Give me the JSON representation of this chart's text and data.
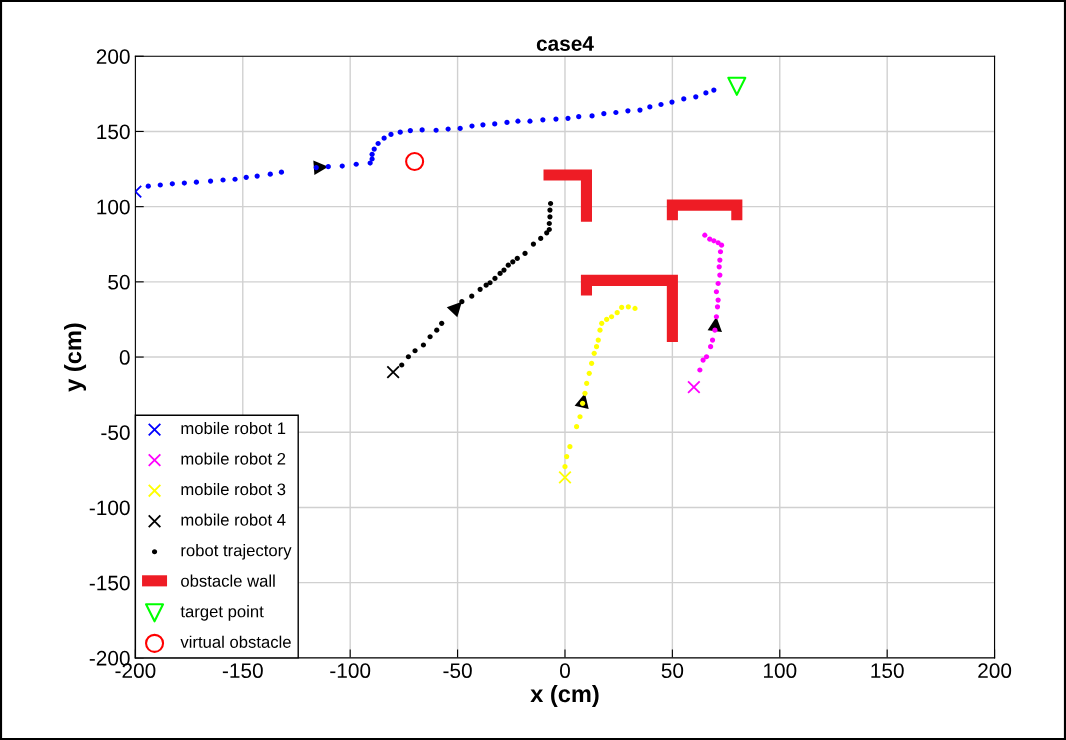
{
  "chart_data": {
    "type": "scatter",
    "title": "case4",
    "xlabel": "x (cm)",
    "ylabel": "y (cm)",
    "xlim": [
      -200,
      200
    ],
    "ylim": [
      -200,
      200
    ],
    "xticks": [
      -200,
      -150,
      -100,
      -50,
      0,
      50,
      100,
      150,
      200
    ],
    "yticks": [
      -200,
      -150,
      -100,
      -50,
      0,
      50,
      100,
      150,
      200
    ],
    "grid": true,
    "legend": "bottom left",
    "series": [
      {
        "name": "mobile robot 1",
        "marker": "cross",
        "color": "#0000ff",
        "x": [
          -200
        ],
        "values": [
          110
        ]
      },
      {
        "name": "mobile robot 2",
        "marker": "cross",
        "color": "#ff00ff",
        "x": [
          60
        ],
        "values": [
          -20
        ]
      },
      {
        "name": "mobile robot 3",
        "marker": "cross",
        "color": "#ffff00",
        "x": [
          0
        ],
        "values": [
          -80
        ]
      },
      {
        "name": "mobile robot 4",
        "marker": "cross",
        "color": "#000000",
        "x": [
          -80
        ],
        "values": [
          -10
        ]
      },
      {
        "name": "robot trajectory",
        "marker": "circle",
        "color": "#000000",
        "x": [
          -76,
          -72.9,
          -69.8,
          -65.9,
          -62.8,
          -59.7,
          -57.4,
          -48,
          -43.4,
          -39.5,
          -36.7,
          -34.9,
          -32.6,
          -30.2,
          -28.4,
          -26.4,
          -24.3,
          -22.2,
          -18.6,
          -14.7,
          -11.3,
          -8.5,
          -7.3,
          -7.3,
          -7,
          -7,
          -6.7
        ],
        "values": [
          -5.3,
          0.2,
          4.2,
          8,
          13.5,
          17.9,
          22.4,
          36.8,
          40.5,
          45,
          47.8,
          49.4,
          52.3,
          55.6,
          57.8,
          61.1,
          63.3,
          65.6,
          68.9,
          75.1,
          78.9,
          82.6,
          84.8,
          88.8,
          93.2,
          97.7,
          102.1
        ]
      },
      {
        "marker": "circle",
        "color": "#0000ff",
        "x": [
          -194,
          -188.4,
          -182.8,
          -177.2,
          -171.6,
          -165,
          -159.2,
          -153.6,
          -148.4,
          -143.3,
          -137.2,
          -132,
          -115.8,
          -110.2,
          -103.7,
          -97.2,
          -90.7,
          -89.8,
          -89.8,
          -88.8,
          -87,
          -84.2,
          -81,
          -76.7,
          -72,
          -66.5,
          -60,
          -54.4,
          -48.8,
          -43.3,
          -38.2,
          -32.7,
          -27,
          -21.9,
          -16.3,
          -10.3,
          -4.2,
          1.4,
          6.4,
          12.6,
          18.1,
          23.7,
          29.3,
          34.9,
          39.5,
          44.7,
          49.8,
          55.3,
          60.9,
          65.6,
          69.3
        ],
        "values": [
          113.6,
          114.4,
          115.2,
          115.7,
          116.3,
          117,
          117.7,
          118.2,
          119.5,
          120.3,
          121.6,
          122.9,
          126,
          126.6,
          127,
          128.2,
          129,
          131.7,
          134.8,
          138.3,
          142,
          145.5,
          148,
          149.5,
          150.6,
          151,
          150.8,
          151.6,
          152,
          153.6,
          154.4,
          155,
          156,
          156.8,
          156.8,
          157.7,
          158.2,
          158.7,
          159.8,
          160.3,
          161.8,
          162.6,
          163.7,
          164.2,
          166.3,
          167.9,
          169.5,
          171.6,
          173,
          175.6,
          177.5
        ]
      },
      {
        "marker": "circle",
        "color": "#ff00ff",
        "x": [
          62.8,
          64.3,
          65.9,
          67.8,
          68.7,
          69.8,
          70.5,
          71,
          71.3,
          70.5,
          71.3,
          72.1,
          71.8,
          72.1,
          72.4,
          72.9,
          71.3,
          69.3,
          67.4,
          65.1
        ],
        "values": [
          -8.6,
          -2,
          0.2,
          6.9,
          11.3,
          17.9,
          26.8,
          33.4,
          37.9,
          43.4,
          48.9,
          54.5,
          60,
          64.5,
          70,
          74.4,
          76,
          77.3,
          78.4,
          81
        ]
      },
      {
        "marker": "circle",
        "color": "#ffff00",
        "x": [
          0,
          0.8,
          2.3,
          5.4,
          7,
          8.2,
          9.3,
          10.1,
          11.3,
          12.4,
          13.6,
          14.7,
          15.5,
          16.3,
          17.1,
          19.4,
          21.7,
          24.3,
          26.4,
          29.5,
          32.6
        ],
        "values": [
          -72.9,
          -66.2,
          -59.6,
          -46.3,
          -39.7,
          -30.8,
          -24.1,
          -17.5,
          -10.8,
          -4.2,
          2.5,
          6.9,
          11.3,
          17.9,
          22.4,
          25,
          26.8,
          29.5,
          33,
          33.4,
          32.3
        ]
      },
      {
        "name": "obstacle wall",
        "type": "line",
        "color": "#ee1c25",
        "x": [
          -10,
          10,
          10
        ],
        "values": [
          121,
          121,
          90
        ]
      },
      {
        "type": "line",
        "color": "#ee1c25",
        "x": [
          50,
          50,
          80,
          80
        ],
        "values": [
          91,
          101,
          101,
          91
        ]
      },
      {
        "type": "line",
        "color": "#ee1c25",
        "x": [
          10,
          10,
          50,
          50
        ],
        "values": [
          41,
          51,
          51,
          10
        ]
      },
      {
        "name": "target point",
        "marker": "triangle",
        "color": "#00ff00",
        "x": [
          80
        ],
        "values": [
          180
        ]
      },
      {
        "name": "virtual obstacle",
        "marker": "circle",
        "color": "#ff0000",
        "x": [
          -70
        ],
        "values": [
          130
        ]
      }
    ]
  }
}
